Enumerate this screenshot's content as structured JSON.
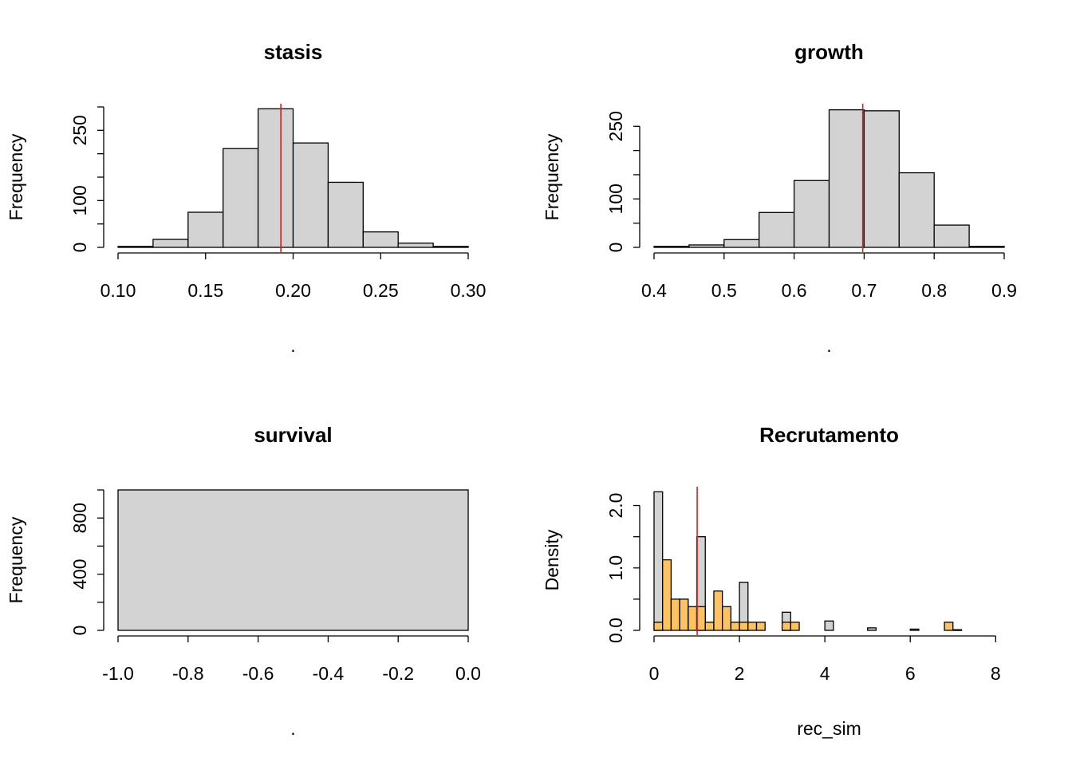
{
  "chart_data": [
    {
      "type": "histogram",
      "title": "stasis",
      "xlabel": ".",
      "ylabel": "Frequency",
      "bins": [
        0.1,
        0.12,
        0.14,
        0.16,
        0.18,
        0.2,
        0.22,
        0.24,
        0.26,
        0.28,
        0.3
      ],
      "values": [
        2,
        17,
        75,
        211,
        296,
        223,
        139,
        33,
        9,
        2
      ],
      "color": "#d3d3d3",
      "vline": 0.193,
      "vline_color": "#e31a1c",
      "xlim": [
        0.1,
        0.3
      ],
      "xticks": [
        {
          "value": 0.1,
          "label": "0.10"
        },
        {
          "value": 0.15,
          "label": "0.15"
        },
        {
          "value": 0.2,
          "label": "0.20"
        },
        {
          "value": 0.25,
          "label": "0.25"
        },
        {
          "value": 0.3,
          "label": "0.30"
        }
      ],
      "ylim": [
        0,
        300
      ],
      "yticks": [
        0,
        100,
        250
      ],
      "yticks_minor": [
        50,
        150,
        200,
        300
      ]
    },
    {
      "type": "histogram",
      "title": "growth",
      "xlabel": ".",
      "ylabel": "Frequency",
      "bins": [
        0.4,
        0.45,
        0.5,
        0.55,
        0.6,
        0.65,
        0.7,
        0.75,
        0.8,
        0.85,
        0.9
      ],
      "values": [
        2,
        5,
        16,
        72,
        138,
        284,
        282,
        154,
        46,
        2
      ],
      "color": "#d3d3d3",
      "vline": 0.698,
      "vline_color": "#e31a1c",
      "xlim": [
        0.4,
        0.9
      ],
      "xticks": [
        0.4,
        0.5,
        0.6,
        0.7,
        0.8,
        0.9
      ],
      "ylim": [
        0,
        290
      ],
      "yticks": [
        0,
        100,
        250
      ],
      "yticks_minor": [
        50,
        150,
        200
      ]
    },
    {
      "type": "histogram",
      "title": "survival",
      "xlabel": ".",
      "ylabel": "Frequency",
      "bins": [
        -1.0,
        0.0
      ],
      "values": [
        1000
      ],
      "color": "#d3d3d3",
      "xlim": [
        -1.0,
        0.0
      ],
      "xticks": [
        {
          "value": -1.0,
          "label": "-1.0"
        },
        {
          "value": -0.8,
          "label": "-0.8"
        },
        {
          "value": -0.6,
          "label": "-0.6"
        },
        {
          "value": -0.4,
          "label": "-0.4"
        },
        {
          "value": -0.2,
          "label": "-0.2"
        },
        {
          "value": 0.0,
          "label": "0.0"
        }
      ],
      "ylim": [
        0,
        1000
      ],
      "yticks": [
        0,
        400,
        800
      ],
      "yticks_minor": [
        200,
        600,
        1000
      ]
    },
    {
      "type": "histogram",
      "title": "Recrutamento",
      "xlabel": "rec_sim",
      "ylabel": "Density",
      "bins": [
        0,
        0.2,
        0.4,
        0.6,
        0.8,
        1.0,
        1.2,
        1.4,
        1.6,
        1.8,
        2.0,
        2.2,
        2.4,
        2.6,
        2.8,
        3.0,
        3.2,
        3.4,
        3.6,
        3.8,
        4.0,
        4.2,
        4.4,
        4.6,
        4.8,
        5.0,
        5.2,
        5.4,
        5.6,
        5.8,
        6.0,
        6.2,
        6.4,
        6.6,
        6.8,
        7.0,
        7.2
      ],
      "series": [
        {
          "color": "#d3d3d3",
          "values": [
            2.22,
            0,
            0,
            0,
            0,
            1.5,
            0,
            0,
            0,
            0,
            0.77,
            0,
            0,
            0,
            0,
            0.29,
            0,
            0,
            0,
            0,
            0.15,
            0,
            0,
            0,
            0,
            0.04,
            0,
            0,
            0,
            0,
            0.02,
            0,
            0,
            0,
            0,
            0.01
          ]
        },
        {
          "color": "#fcc266",
          "values": [
            0.13,
            1.13,
            0.5,
            0.5,
            0.38,
            0.38,
            0.13,
            0.63,
            0.38,
            0.13,
            0.13,
            0.13,
            0.13,
            0,
            0,
            0.13,
            0.13,
            0,
            0,
            0,
            0,
            0,
            0,
            0,
            0,
            0,
            0,
            0,
            0,
            0,
            0,
            0,
            0,
            0,
            0.13,
            0.01
          ]
        }
      ],
      "vline": 1.01,
      "vline_color": "#e31a1c",
      "xlim": [
        0,
        8.2
      ],
      "xticks": [
        0,
        2,
        4,
        6,
        8
      ],
      "ylim": [
        0,
        2.25
      ],
      "yticks": [
        {
          "value": 0.0,
          "label": "0.0"
        },
        {
          "value": 1.0,
          "label": "1.0"
        },
        {
          "value": 2.0,
          "label": "2.0"
        }
      ],
      "yticks_minor": [
        0.5,
        1.5
      ]
    }
  ]
}
